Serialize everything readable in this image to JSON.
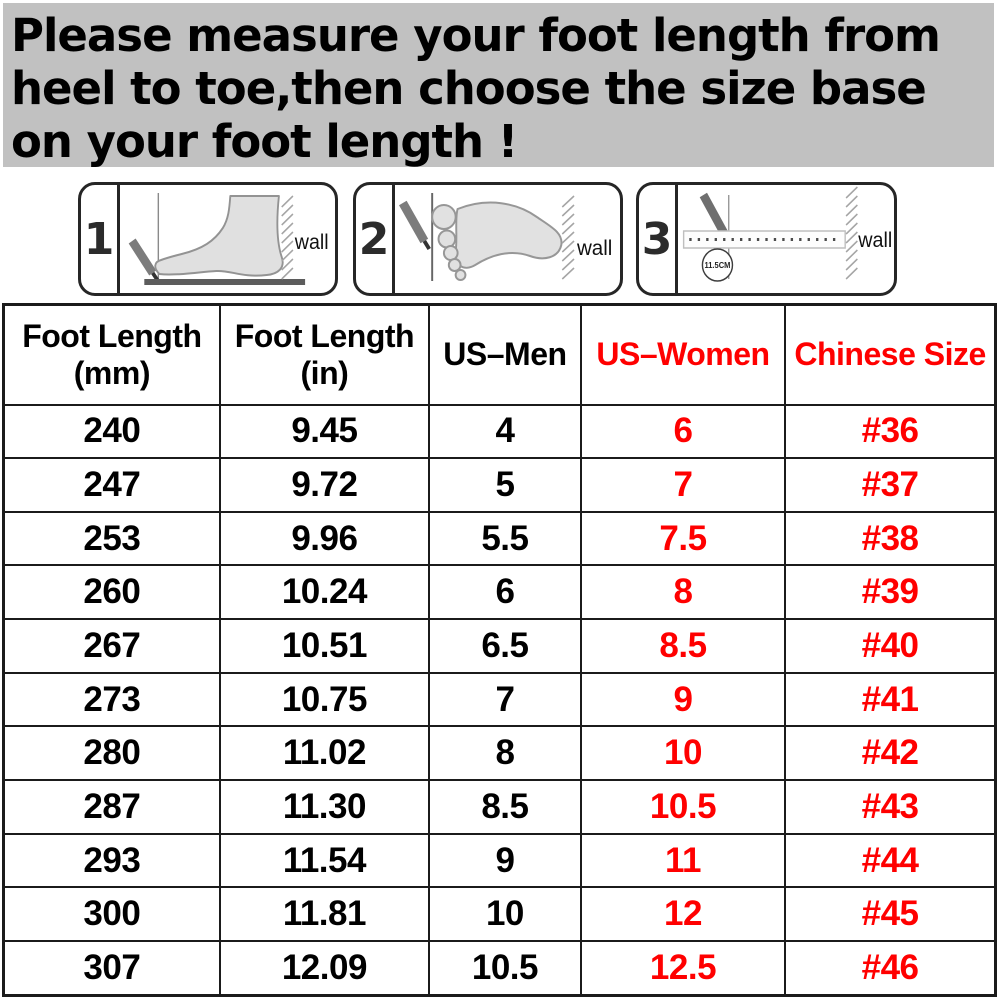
{
  "colors": {
    "banner_bg": "#c1c1c1",
    "accent_red": "#ff0000",
    "line_dark": "#1b1b1b",
    "text_black": "#000000"
  },
  "banner": {
    "lines": [
      "Please measure your foot length from",
      "heel to toe,then choose the size base",
      "on your foot length !"
    ]
  },
  "steps": [
    {
      "number": "1",
      "wall_label": "wall"
    },
    {
      "number": "2",
      "wall_label": "wall"
    },
    {
      "number": "3",
      "wall_label": "wall",
      "ruler_circle_label": "11.5CM"
    }
  ],
  "table": {
    "columns": [
      {
        "line1": "Foot Length",
        "line2": "(mm)"
      },
      {
        "line1": "Foot Length",
        "line2": "(in)"
      },
      {
        "line1": "US–Men"
      },
      {
        "line1": "US–Women"
      },
      {
        "line1": "Chinese Size"
      }
    ],
    "rows": [
      [
        "240",
        "9.45",
        "4",
        "6",
        "#36"
      ],
      [
        "247",
        "9.72",
        "5",
        "7",
        "#37"
      ],
      [
        "253",
        "9.96",
        "5.5",
        "7.5",
        "#38"
      ],
      [
        "260",
        "10.24",
        "6",
        "8",
        "#39"
      ],
      [
        "267",
        "10.51",
        "6.5",
        "8.5",
        "#40"
      ],
      [
        "273",
        "10.75",
        "7",
        "9",
        "#41"
      ],
      [
        "280",
        "11.02",
        "8",
        "10",
        "#42"
      ],
      [
        "287",
        "11.30",
        "8.5",
        "10.5",
        "#43"
      ],
      [
        "293",
        "11.54",
        "9",
        "11",
        "#44"
      ],
      [
        "300",
        "11.81",
        "10",
        "12",
        "#45"
      ],
      [
        "307",
        "12.09",
        "10.5",
        "12.5",
        "#46"
      ]
    ]
  }
}
